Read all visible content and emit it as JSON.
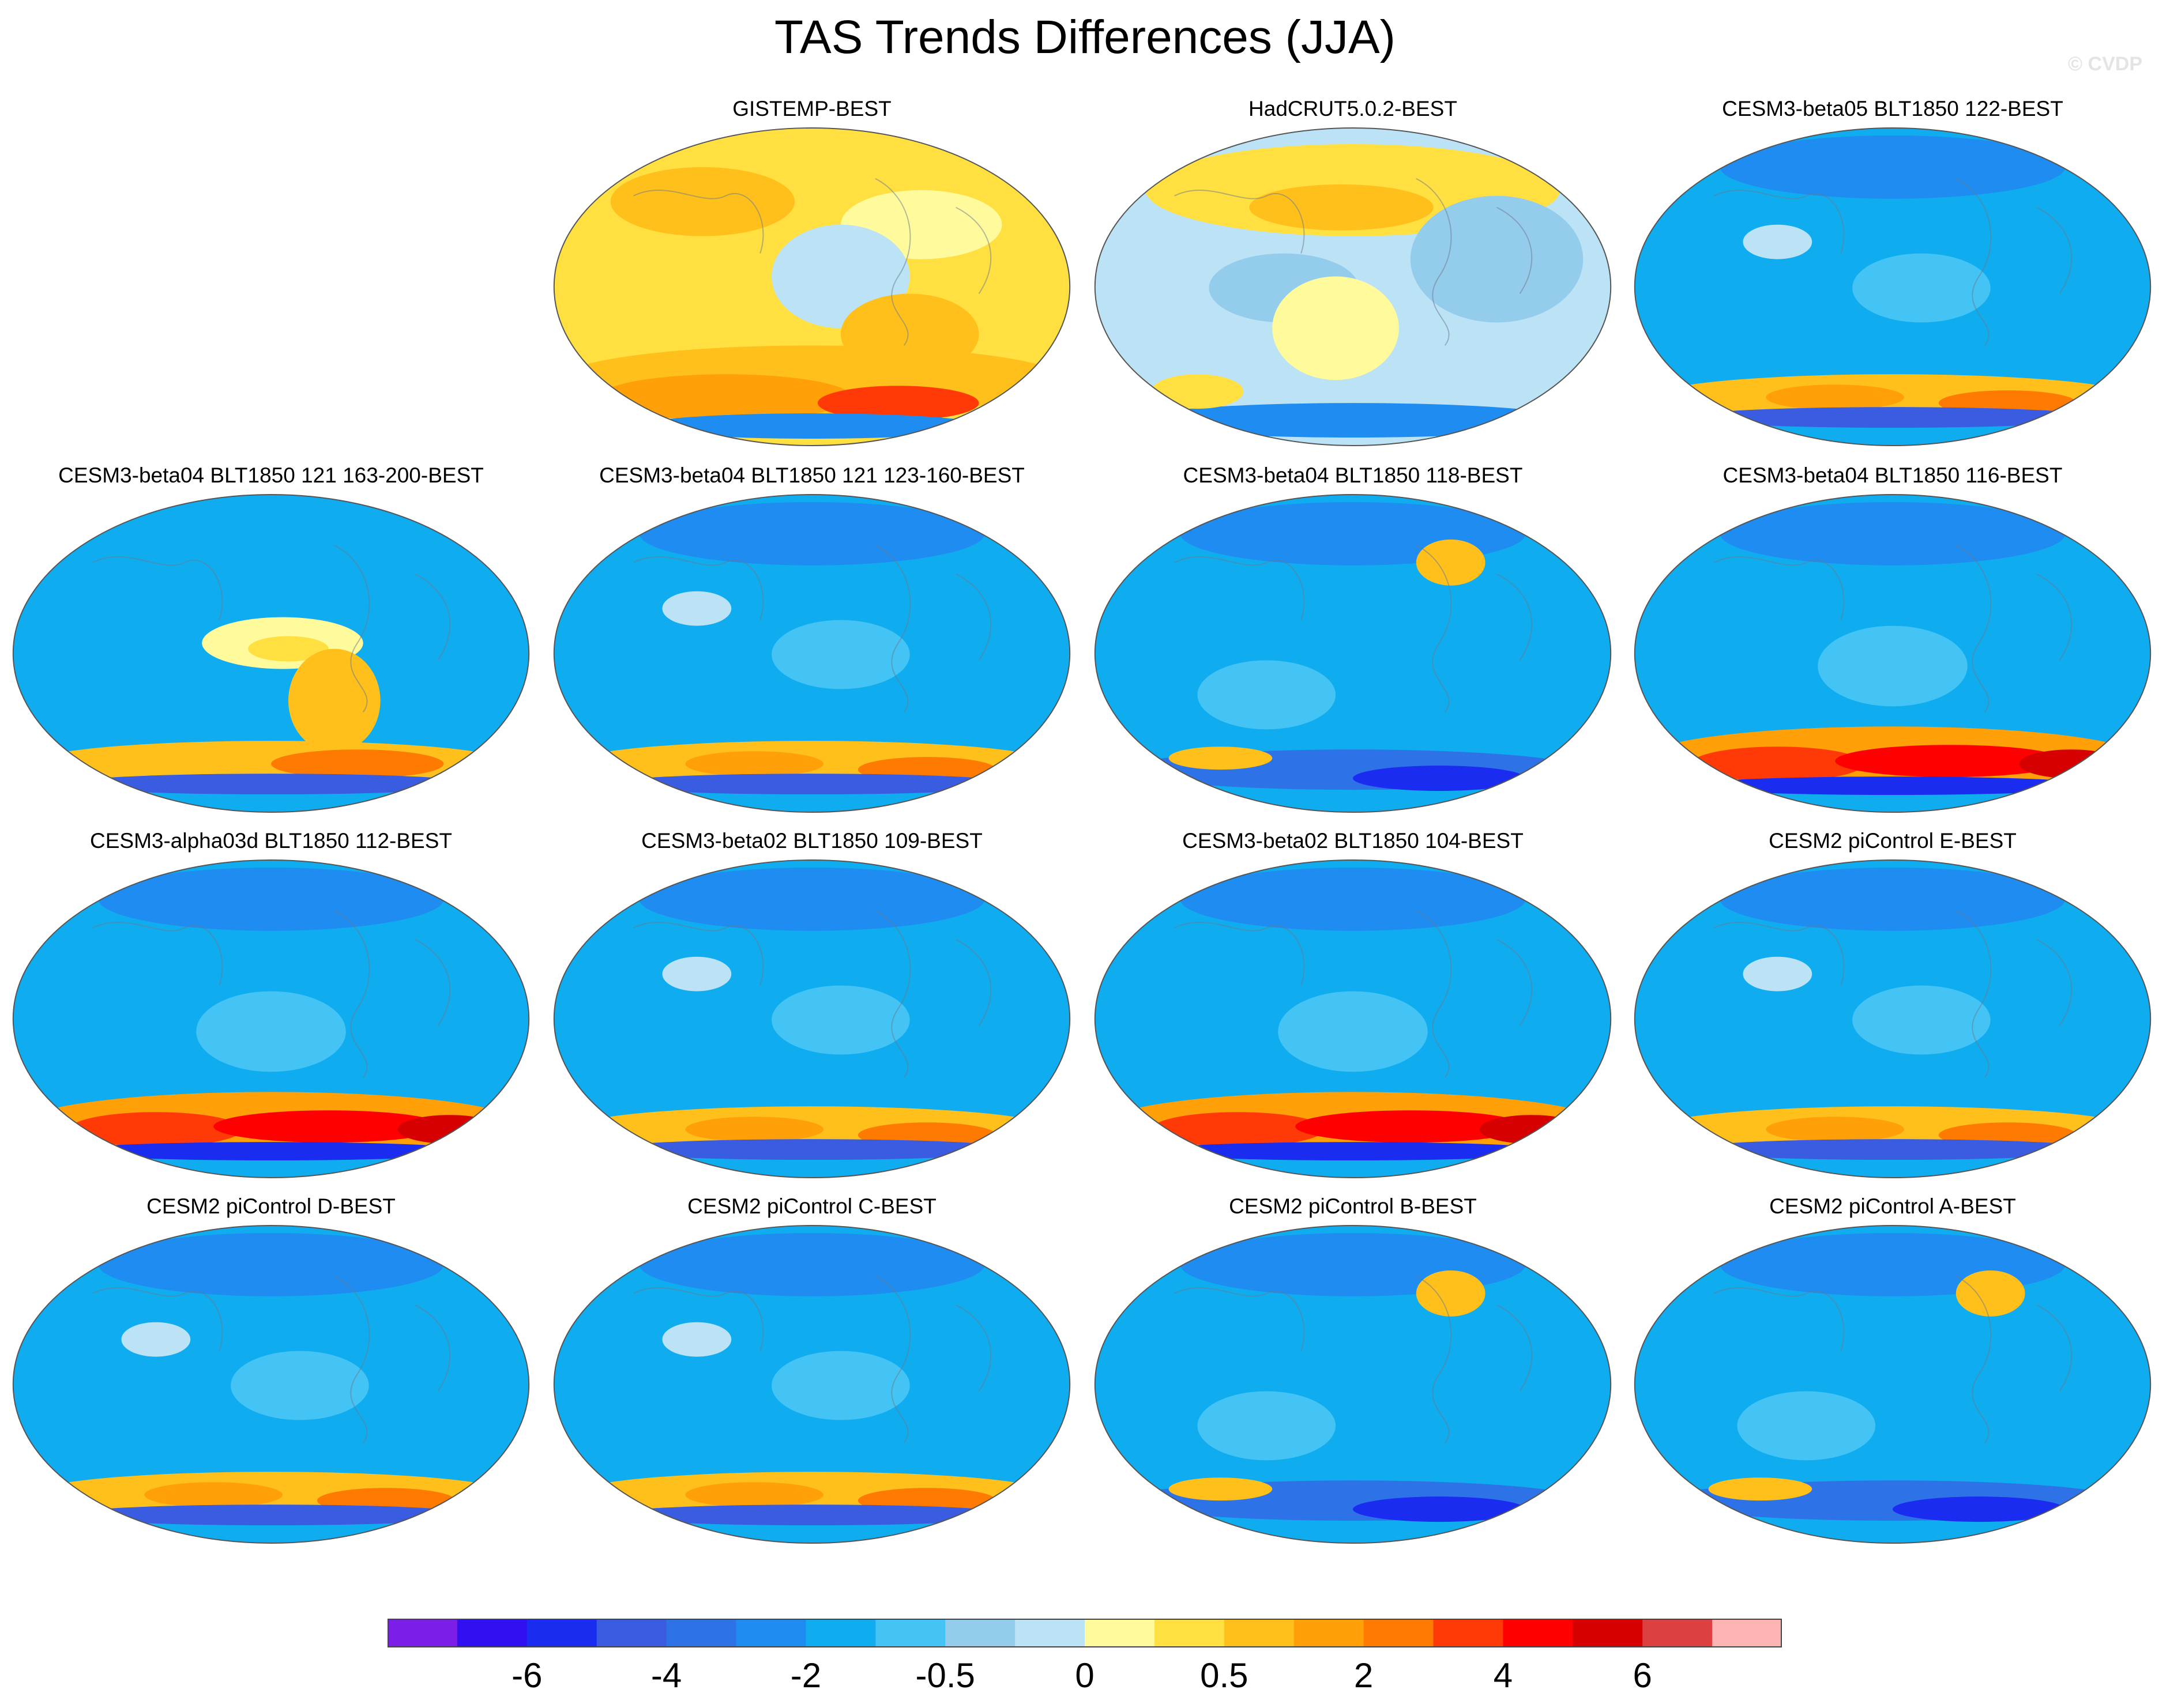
{
  "title": "TAS Trends Differences (JJA)",
  "watermark": "© CVDP",
  "chart_data": {
    "type": "heatmap",
    "title": "TAS Trends Differences (JJA)",
    "projection": "Robinson global map, Pacific-centered",
    "panels": [
      {
        "title": "GISTEMP-BEST",
        "pattern": "mostly_positive"
      },
      {
        "title": "HadCRUT5.0.2-BEST",
        "pattern": "mixed"
      },
      {
        "title": "CESM3-beta05 BLT1850 122-BEST",
        "pattern": "negative_sh_band"
      },
      {
        "title": "CESM3-beta04 BLT1850 121 163-200-BEST",
        "pattern": "negative_pacific_warm"
      },
      {
        "title": "CESM3-beta04 BLT1850 121 123-160-BEST",
        "pattern": "negative_sh_band"
      },
      {
        "title": "CESM3-beta04 BLT1850 118-BEST",
        "pattern": "negative_deep_antarctic"
      },
      {
        "title": "CESM3-beta04 BLT1850 116-BEST",
        "pattern": "negative_strong_sh"
      },
      {
        "title": "CESM3-alpha03d BLT1850 112-BEST",
        "pattern": "negative_strong_sh"
      },
      {
        "title": "CESM3-beta02 BLT1850 109-BEST",
        "pattern": "negative_sh_band"
      },
      {
        "title": "CESM3-beta02 BLT1850 104-BEST",
        "pattern": "negative_strong_sh"
      },
      {
        "title": "CESM2 piControl E-BEST",
        "pattern": "negative_sh_band"
      },
      {
        "title": "CESM2 piControl D-BEST",
        "pattern": "negative_sh_band"
      },
      {
        "title": "CESM2 piControl C-BEST",
        "pattern": "negative_sh_band"
      },
      {
        "title": "CESM2 piControl B-BEST",
        "pattern": "negative_deep_antarctic"
      },
      {
        "title": "CESM2 piControl A-BEST",
        "pattern": "negative_deep_antarctic"
      }
    ],
    "colorbar": {
      "colors": [
        "#7a1ee8",
        "#3010f0",
        "#1a2cf0",
        "#3a5ce0",
        "#2e72e8",
        "#1e8cf0",
        "#10acf0",
        "#44c4f4",
        "#94ccec",
        "#bce2f6",
        "#fffa9c",
        "#ffe040",
        "#ffc01c",
        "#ffa008",
        "#ff7a00",
        "#ff3a06",
        "#ff0000",
        "#d60000",
        "#dc4040",
        "#ffb4b4"
      ],
      "tick_labels": [
        {
          "label": "-6",
          "boundary": 2
        },
        {
          "label": "-4",
          "boundary": 4
        },
        {
          "label": "-2",
          "boundary": 6
        },
        {
          "label": "-0.5",
          "boundary": 8
        },
        {
          "label": "0",
          "boundary": 10
        },
        {
          "label": "0.5",
          "boundary": 12
        },
        {
          "label": "2",
          "boundary": 14
        },
        {
          "label": "4",
          "boundary": 16
        },
        {
          "label": "6",
          "boundary": 18
        }
      ]
    }
  }
}
